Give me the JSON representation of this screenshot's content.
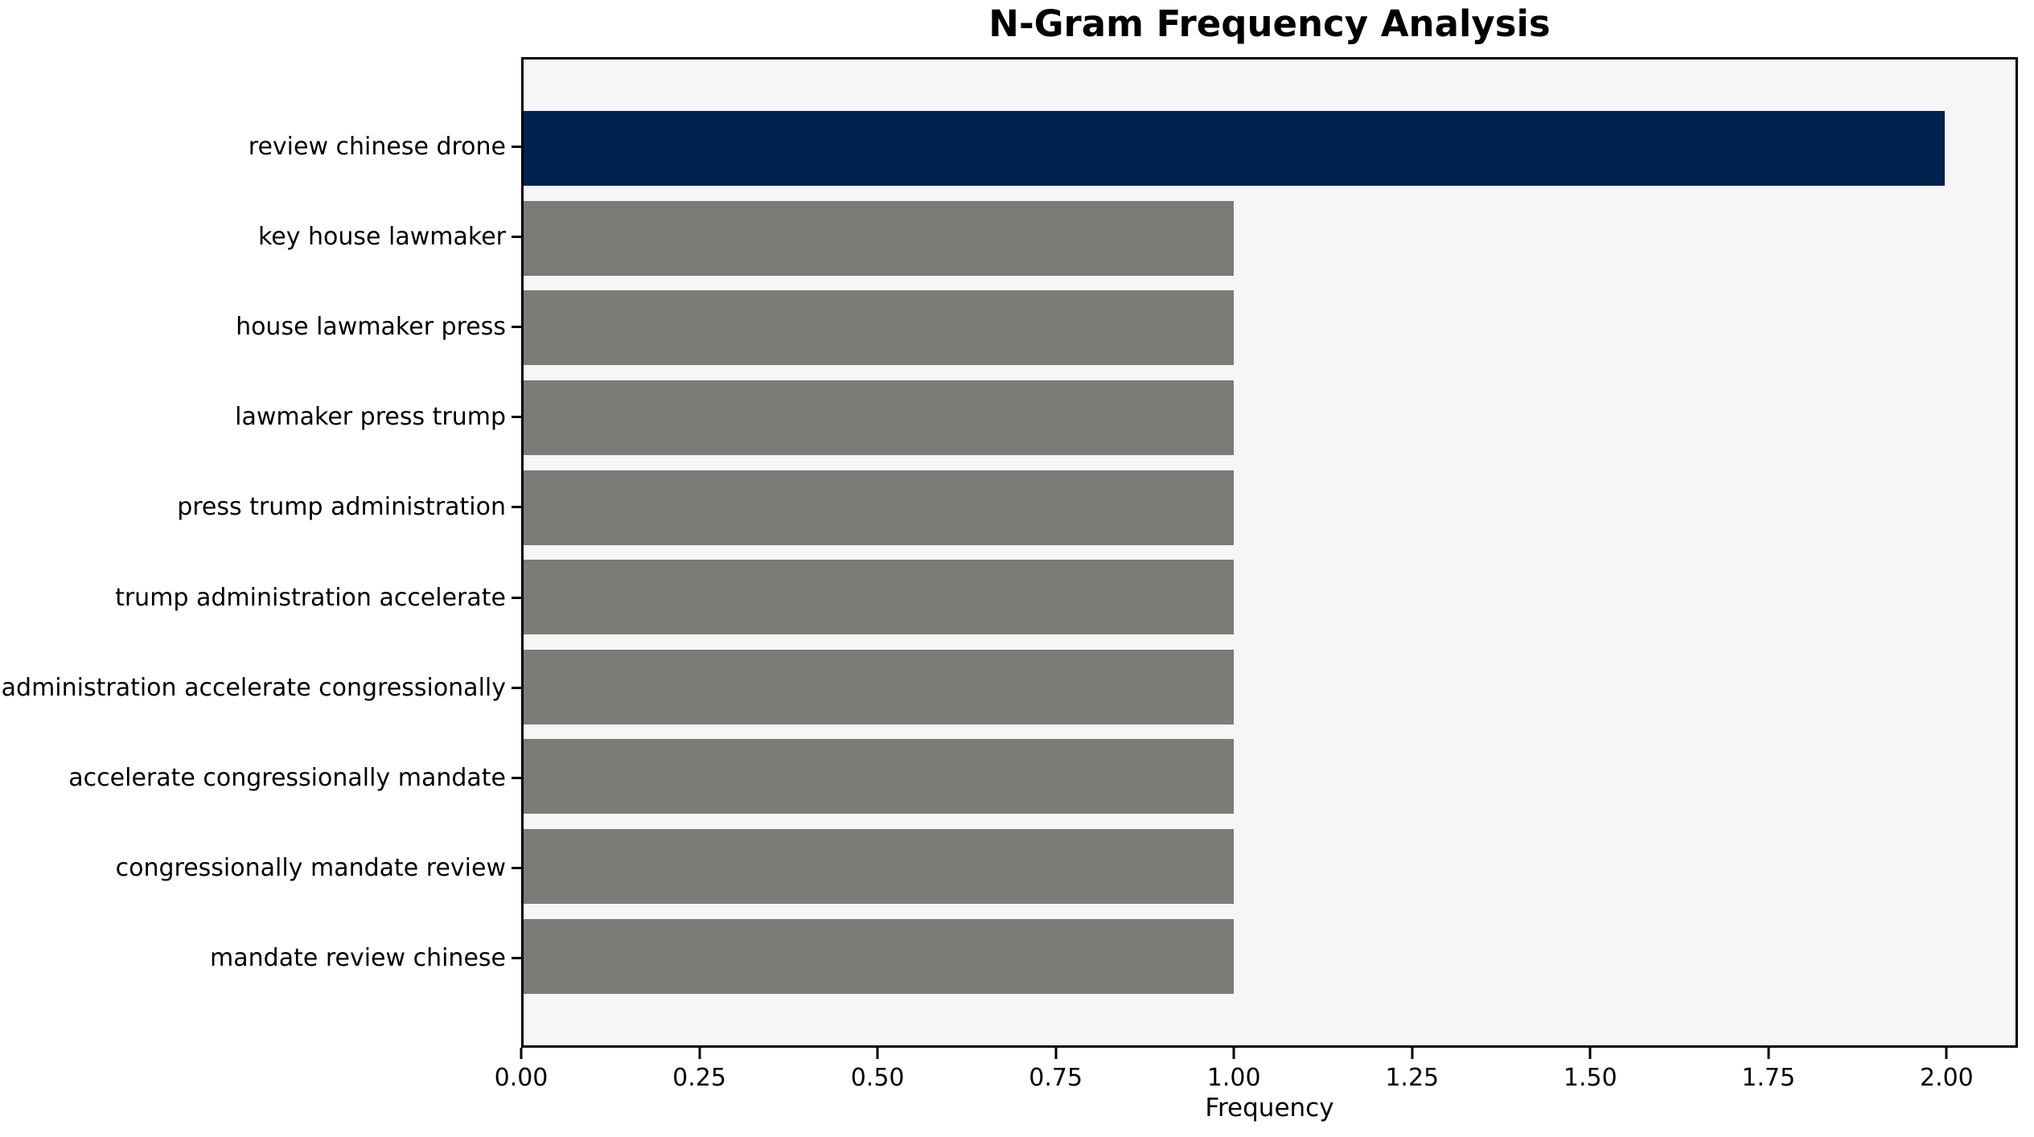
{
  "chart_data": {
    "type": "bar",
    "orientation": "horizontal",
    "title": "N-Gram Frequency Analysis",
    "xlabel": "Frequency",
    "ylabel": "",
    "categories": [
      "review chinese drone",
      "key house lawmaker",
      "house lawmaker press",
      "lawmaker press trump",
      "press trump administration",
      "trump administration accelerate",
      "administration accelerate congressionally",
      "accelerate congressionally mandate",
      "congressionally mandate review",
      "mandate review chinese"
    ],
    "values": [
      2,
      1,
      1,
      1,
      1,
      1,
      1,
      1,
      1,
      1
    ],
    "xlim": [
      0,
      2.1
    ],
    "xticks": [
      "0.00",
      "0.25",
      "0.50",
      "0.75",
      "1.00",
      "1.25",
      "1.50",
      "1.75",
      "2.00"
    ],
    "xtick_values": [
      0,
      0.25,
      0.5,
      0.75,
      1.0,
      1.25,
      1.5,
      1.75,
      2.0
    ],
    "highlight_index": 0,
    "colors": {
      "highlight_bar": "#00224e",
      "default_bar": "#7b7b78",
      "plot_background": "#f7f6f6",
      "axis": "#000000",
      "text": "#000000",
      "figure_background": "#ffffff"
    },
    "grid": false,
    "legend": null
  }
}
